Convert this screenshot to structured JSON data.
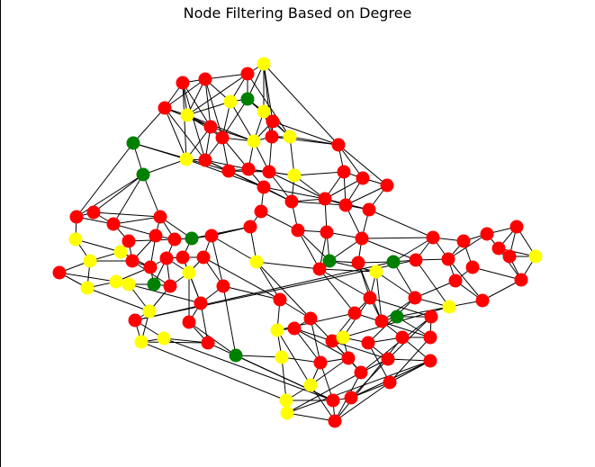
{
  "title": "Node Filtering Based on Degree",
  "colors": {
    "edge": "#000000",
    "high": "#ff0000",
    "mid": "#ffff00",
    "low": "#008000"
  },
  "graph": {
    "categories": {
      "r": "high",
      "y": "mid",
      "g": "low"
    },
    "nodes": [
      [
        293,
        71,
        "y"
      ],
      [
        275,
        82,
        "r"
      ],
      [
        228,
        88,
        "r"
      ],
      [
        203,
        92,
        "r"
      ],
      [
        183,
        120,
        "r"
      ],
      [
        208,
        128,
        "y"
      ],
      [
        256,
        113,
        "y"
      ],
      [
        275,
        110,
        "g"
      ],
      [
        293,
        124,
        "y"
      ],
      [
        303,
        135,
        "r"
      ],
      [
        234,
        141,
        "r"
      ],
      [
        247,
        153,
        "r"
      ],
      [
        282,
        157,
        "y"
      ],
      [
        302,
        152,
        "r"
      ],
      [
        322,
        152,
        "y"
      ],
      [
        148,
        159,
        "g"
      ],
      [
        376,
        161,
        "r"
      ],
      [
        207,
        177,
        "y"
      ],
      [
        228,
        178,
        "r"
      ],
      [
        159,
        194,
        "g"
      ],
      [
        254,
        190,
        "r"
      ],
      [
        276,
        188,
        "r"
      ],
      [
        299,
        191,
        "r"
      ],
      [
        327,
        195,
        "y"
      ],
      [
        382,
        191,
        "r"
      ],
      [
        403,
        198,
        "r"
      ],
      [
        430,
        206,
        "r"
      ],
      [
        293,
        208,
        "r"
      ],
      [
        324,
        224,
        "r"
      ],
      [
        361,
        221,
        "r"
      ],
      [
        384,
        228,
        "r"
      ],
      [
        410,
        233,
        "r"
      ],
      [
        290,
        235,
        "r"
      ],
      [
        85,
        241,
        "r"
      ],
      [
        104,
        236,
        "r"
      ],
      [
        126,
        249,
        "r"
      ],
      [
        178,
        241,
        "r"
      ],
      [
        278,
        252,
        "r"
      ],
      [
        331,
        256,
        "r"
      ],
      [
        363,
        258,
        "r"
      ],
      [
        84,
        266,
        "y"
      ],
      [
        143,
        268,
        "r"
      ],
      [
        173,
        262,
        "r"
      ],
      [
        194,
        266,
        "r"
      ],
      [
        213,
        265,
        "g"
      ],
      [
        235,
        262,
        "r"
      ],
      [
        402,
        265,
        "r"
      ],
      [
        481,
        264,
        "r"
      ],
      [
        515,
        268,
        "r"
      ],
      [
        541,
        260,
        "r"
      ],
      [
        574,
        252,
        "r"
      ],
      [
        134,
        280,
        "y"
      ],
      [
        554,
        276,
        "r"
      ],
      [
        566,
        285,
        "r"
      ],
      [
        595,
        285,
        "y"
      ],
      [
        100,
        290,
        "y"
      ],
      [
        147,
        290,
        "r"
      ],
      [
        167,
        297,
        "r"
      ],
      [
        185,
        287,
        "r"
      ],
      [
        203,
        286,
        "r"
      ],
      [
        226,
        286,
        "r"
      ],
      [
        285,
        291,
        "y"
      ],
      [
        366,
        290,
        "g"
      ],
      [
        355,
        299,
        "r"
      ],
      [
        398,
        292,
        "r"
      ],
      [
        437,
        291,
        "g"
      ],
      [
        462,
        289,
        "r"
      ],
      [
        498,
        288,
        "r"
      ],
      [
        525,
        297,
        "r"
      ],
      [
        418,
        302,
        "y"
      ],
      [
        66,
        303,
        "r"
      ],
      [
        129,
        313,
        "y"
      ],
      [
        143,
        316,
        "y"
      ],
      [
        171,
        316,
        "g"
      ],
      [
        189,
        318,
        "r"
      ],
      [
        210,
        303,
        "y"
      ],
      [
        248,
        318,
        "r"
      ],
      [
        506,
        312,
        "r"
      ],
      [
        579,
        311,
        "r"
      ],
      [
        97,
        320,
        "y"
      ],
      [
        223,
        337,
        "r"
      ],
      [
        311,
        333,
        "r"
      ],
      [
        411,
        331,
        "r"
      ],
      [
        461,
        331,
        "r"
      ],
      [
        536,
        334,
        "r"
      ],
      [
        499,
        341,
        "y"
      ],
      [
        166,
        346,
        "y"
      ],
      [
        394,
        348,
        "r"
      ],
      [
        150,
        356,
        "r"
      ],
      [
        210,
        358,
        "r"
      ],
      [
        345,
        354,
        "r"
      ],
      [
        424,
        357,
        "r"
      ],
      [
        441,
        352,
        "g"
      ],
      [
        479,
        352,
        "r"
      ],
      [
        308,
        367,
        "y"
      ],
      [
        327,
        365,
        "r"
      ],
      [
        369,
        379,
        "r"
      ],
      [
        381,
        375,
        "y"
      ],
      [
        409,
        381,
        "r"
      ],
      [
        447,
        375,
        "r"
      ],
      [
        478,
        375,
        "r"
      ],
      [
        157,
        380,
        "y"
      ],
      [
        182,
        376,
        "y"
      ],
      [
        231,
        381,
        "r"
      ],
      [
        262,
        395,
        "g"
      ],
      [
        313,
        397,
        "y"
      ],
      [
        356,
        403,
        "r"
      ],
      [
        387,
        398,
        "r"
      ],
      [
        401,
        414,
        "r"
      ],
      [
        431,
        399,
        "r"
      ],
      [
        478,
        401,
        "r"
      ],
      [
        345,
        428,
        "y"
      ],
      [
        433,
        425,
        "r"
      ],
      [
        318,
        445,
        "y"
      ],
      [
        370,
        445,
        "r"
      ],
      [
        390,
        442,
        "r"
      ],
      [
        319,
        459,
        "y"
      ],
      [
        372,
        468,
        "r"
      ]
    ],
    "edges": [
      [
        0,
        1
      ],
      [
        0,
        7
      ],
      [
        0,
        8
      ],
      [
        0,
        9
      ],
      [
        0,
        13
      ],
      [
        1,
        2
      ],
      [
        1,
        5
      ],
      [
        1,
        6
      ],
      [
        1,
        7
      ],
      [
        2,
        3
      ],
      [
        2,
        4
      ],
      [
        2,
        10
      ],
      [
        2,
        11
      ],
      [
        3,
        4
      ],
      [
        3,
        5
      ],
      [
        3,
        10
      ],
      [
        4,
        5
      ],
      [
        4,
        10
      ],
      [
        4,
        15
      ],
      [
        4,
        17
      ],
      [
        5,
        6
      ],
      [
        5,
        10
      ],
      [
        5,
        11
      ],
      [
        6,
        7
      ],
      [
        6,
        12
      ],
      [
        7,
        8
      ],
      [
        7,
        11
      ],
      [
        8,
        9
      ],
      [
        8,
        12
      ],
      [
        8,
        13
      ],
      [
        9,
        12
      ],
      [
        9,
        14
      ],
      [
        9,
        16
      ],
      [
        10,
        11
      ],
      [
        10,
        17
      ],
      [
        10,
        18
      ],
      [
        11,
        12
      ],
      [
        11,
        18
      ],
      [
        11,
        20
      ],
      [
        12,
        13
      ],
      [
        12,
        21
      ],
      [
        13,
        14
      ],
      [
        13,
        22
      ],
      [
        14,
        16
      ],
      [
        14,
        23
      ],
      [
        15,
        17
      ],
      [
        15,
        19
      ],
      [
        15,
        20
      ],
      [
        17,
        18
      ],
      [
        17,
        19
      ],
      [
        18,
        20
      ],
      [
        18,
        21
      ],
      [
        19,
        33
      ],
      [
        19,
        34
      ],
      [
        19,
        36
      ],
      [
        20,
        21
      ],
      [
        20,
        27
      ],
      [
        21,
        22
      ],
      [
        21,
        27
      ],
      [
        22,
        23
      ],
      [
        22,
        28
      ],
      [
        23,
        24
      ],
      [
        23,
        28
      ],
      [
        24,
        25
      ],
      [
        24,
        29
      ],
      [
        25,
        26
      ],
      [
        25,
        30
      ],
      [
        26,
        31
      ],
      [
        27,
        28
      ],
      [
        27,
        32
      ],
      [
        28,
        29
      ],
      [
        28,
        38
      ],
      [
        29,
        30
      ],
      [
        29,
        39
      ],
      [
        30,
        31
      ],
      [
        30,
        46
      ],
      [
        31,
        47
      ],
      [
        32,
        37
      ],
      [
        33,
        34
      ],
      [
        33,
        40
      ],
      [
        34,
        35
      ],
      [
        35,
        41
      ],
      [
        35,
        42
      ],
      [
        36,
        43
      ],
      [
        37,
        45
      ],
      [
        38,
        39
      ],
      [
        39,
        46
      ],
      [
        40,
        51
      ],
      [
        41,
        51
      ],
      [
        41,
        56
      ],
      [
        42,
        43
      ],
      [
        42,
        57
      ],
      [
        43,
        44
      ],
      [
        44,
        45
      ],
      [
        44,
        59
      ],
      [
        45,
        60
      ],
      [
        46,
        47
      ],
      [
        46,
        64
      ],
      [
        47,
        48
      ],
      [
        47,
        67
      ],
      [
        48,
        49
      ],
      [
        48,
        68
      ],
      [
        49,
        50
      ],
      [
        49,
        52
      ],
      [
        50,
        53
      ],
      [
        51,
        55
      ],
      [
        52,
        53
      ],
      [
        52,
        54
      ],
      [
        53,
        54
      ],
      [
        53,
        78
      ],
      [
        54,
        78
      ],
      [
        55,
        56
      ],
      [
        55,
        70
      ],
      [
        56,
        57
      ],
      [
        57,
        58
      ],
      [
        58,
        59
      ],
      [
        58,
        73
      ],
      [
        59,
        60
      ],
      [
        59,
        75
      ],
      [
        60,
        76
      ],
      [
        61,
        63
      ],
      [
        62,
        63
      ],
      [
        62,
        64
      ],
      [
        63,
        69
      ],
      [
        64,
        65
      ],
      [
        65,
        66
      ],
      [
        66,
        67
      ],
      [
        67,
        77
      ],
      [
        68,
        77
      ],
      [
        69,
        82
      ],
      [
        70,
        79
      ],
      [
        71,
        72
      ],
      [
        72,
        73
      ],
      [
        73,
        74
      ],
      [
        74,
        75
      ],
      [
        75,
        80
      ],
      [
        76,
        80
      ],
      [
        77,
        84
      ],
      [
        78,
        84
      ],
      [
        79,
        86
      ],
      [
        80,
        89
      ],
      [
        81,
        90
      ],
      [
        82,
        87
      ],
      [
        82,
        91
      ],
      [
        83,
        85
      ],
      [
        84,
        85
      ],
      [
        86,
        88
      ],
      [
        87,
        96
      ],
      [
        88,
        101
      ],
      [
        89,
        103
      ],
      [
        90,
        95
      ],
      [
        91,
        92
      ],
      [
        92,
        93
      ],
      [
        93,
        100
      ],
      [
        94,
        95
      ],
      [
        95,
        96
      ],
      [
        96,
        97
      ],
      [
        97,
        98
      ],
      [
        98,
        99
      ],
      [
        99,
        100
      ],
      [
        101,
        102
      ],
      [
        102,
        103
      ],
      [
        104,
        105
      ],
      [
        105,
        106
      ],
      [
        106,
        107
      ],
      [
        107,
        108
      ],
      [
        108,
        109
      ],
      [
        109,
        110
      ],
      [
        110,
        112
      ],
      [
        111,
        113
      ],
      [
        112,
        115
      ],
      [
        113,
        116
      ],
      [
        114,
        115
      ],
      [
        114,
        117
      ],
      [
        116,
        117
      ],
      [
        1,
        14
      ],
      [
        2,
        6
      ],
      [
        3,
        17
      ],
      [
        4,
        18
      ],
      [
        5,
        12
      ],
      [
        6,
        11
      ],
      [
        7,
        9
      ],
      [
        8,
        14
      ],
      [
        9,
        13
      ],
      [
        10,
        12
      ],
      [
        11,
        21
      ],
      [
        12,
        22
      ],
      [
        13,
        16
      ],
      [
        16,
        24
      ],
      [
        16,
        25
      ],
      [
        16,
        26
      ],
      [
        20,
        22
      ],
      [
        21,
        23
      ],
      [
        22,
        29
      ],
      [
        23,
        29
      ],
      [
        24,
        30
      ],
      [
        25,
        29
      ],
      [
        26,
        30
      ],
      [
        27,
        29
      ],
      [
        28,
        30
      ],
      [
        29,
        31
      ],
      [
        31,
        46
      ],
      [
        32,
        38
      ],
      [
        33,
        35
      ],
      [
        34,
        36
      ],
      [
        35,
        36
      ],
      [
        36,
        44
      ],
      [
        37,
        61
      ],
      [
        38,
        62
      ],
      [
        39,
        62
      ],
      [
        40,
        55
      ],
      [
        41,
        43
      ],
      [
        42,
        56
      ],
      [
        43,
        58
      ],
      [
        45,
        76
      ],
      [
        46,
        62
      ],
      [
        47,
        65
      ],
      [
        48,
        67
      ],
      [
        49,
        67
      ],
      [
        50,
        52
      ],
      [
        51,
        57
      ],
      [
        56,
        74
      ],
      [
        57,
        71
      ],
      [
        58,
        74
      ],
      [
        60,
        75
      ],
      [
        61,
        81
      ],
      [
        62,
        69
      ],
      [
        63,
        82
      ],
      [
        64,
        82
      ],
      [
        65,
        83
      ],
      [
        66,
        85
      ],
      [
        67,
        84
      ],
      [
        68,
        78
      ],
      [
        69,
        83
      ],
      [
        70,
        71
      ],
      [
        71,
        79
      ],
      [
        72,
        86
      ],
      [
        74,
        86
      ],
      [
        76,
        104
      ],
      [
        80,
        103
      ],
      [
        81,
        94
      ],
      [
        82,
        93
      ],
      [
        83,
        91
      ],
      [
        85,
        92
      ],
      [
        86,
        101
      ],
      [
        87,
        94
      ],
      [
        88,
        102
      ],
      [
        89,
        104
      ],
      [
        90,
        107
      ],
      [
        91,
        99
      ],
      [
        92,
        100
      ],
      [
        93,
        108
      ],
      [
        94,
        105
      ],
      [
        95,
        106
      ],
      [
        96,
        108
      ],
      [
        97,
        107
      ],
      [
        98,
        109
      ],
      [
        99,
        110
      ],
      [
        100,
        112
      ],
      [
        101,
        103
      ],
      [
        104,
        114
      ],
      [
        105,
        113
      ],
      [
        106,
        114
      ],
      [
        107,
        111
      ],
      [
        108,
        116
      ],
      [
        109,
        115
      ],
      [
        110,
        115
      ],
      [
        111,
        117
      ],
      [
        112,
        117
      ],
      [
        113,
        114
      ],
      [
        0,
        16
      ],
      [
        2,
        5
      ],
      [
        3,
        18
      ],
      [
        17,
        27
      ],
      [
        18,
        27
      ],
      [
        20,
        28
      ],
      [
        15,
        33
      ],
      [
        19,
        35
      ],
      [
        36,
        42
      ],
      [
        37,
        44
      ],
      [
        37,
        45
      ],
      [
        38,
        63
      ],
      [
        39,
        63
      ],
      [
        45,
        61
      ],
      [
        46,
        66
      ],
      [
        47,
        66
      ],
      [
        50,
        54
      ],
      [
        52,
        78
      ],
      [
        55,
        79
      ],
      [
        57,
        73
      ],
      [
        58,
        75
      ],
      [
        59,
        80
      ],
      [
        60,
        81
      ],
      [
        61,
        90
      ],
      [
        63,
        87
      ],
      [
        64,
        91
      ],
      [
        65,
        88
      ],
      [
        66,
        88
      ],
      [
        69,
        91
      ],
      [
        72,
        80
      ],
      [
        75,
        89
      ],
      [
        76,
        81
      ],
      [
        77,
        83
      ],
      [
        82,
        97
      ],
      [
        83,
        98
      ],
      [
        85,
        97
      ],
      [
        87,
        100
      ],
      [
        90,
        106
      ],
      [
        93,
        109
      ],
      [
        94,
        111
      ],
      [
        95,
        107
      ],
      [
        96,
        109
      ],
      [
        98,
        112
      ],
      [
        99,
        117
      ],
      [
        101,
        113
      ],
      [
        102,
        114
      ],
      [
        103,
        114
      ],
      [
        106,
        111
      ],
      [
        108,
        117
      ],
      [
        110,
        116
      ]
    ]
  }
}
